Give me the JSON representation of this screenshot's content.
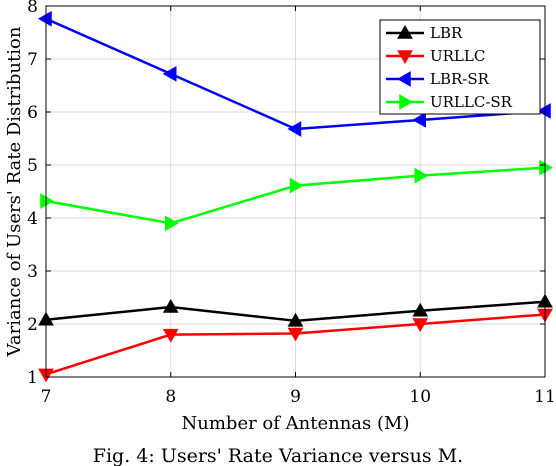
{
  "chart_data": {
    "type": "line",
    "xlabel": "Number of Antennas (M)",
    "ylabel": "Variance of Users' Rate Distribution",
    "x": [
      7,
      8,
      9,
      10,
      11
    ],
    "xlim": [
      7,
      11
    ],
    "ylim": [
      1,
      8
    ],
    "xticks": [
      "7",
      "8",
      "9",
      "10",
      "11"
    ],
    "yticks": [
      "1",
      "2",
      "3",
      "4",
      "5",
      "6",
      "7",
      "8"
    ],
    "grid": true,
    "legend_position": "top-right",
    "series": [
      {
        "name": "LBR",
        "values": [
          2.08,
          2.32,
          2.06,
          2.25,
          2.42
        ],
        "color": "#000000",
        "marker": "triangle-up"
      },
      {
        "name": "URLLC",
        "values": [
          1.05,
          1.8,
          1.82,
          2.0,
          2.18
        ],
        "color": "#ff0000",
        "marker": "triangle-down"
      },
      {
        "name": "LBR-SR",
        "values": [
          7.76,
          6.72,
          5.68,
          5.85,
          6.02
        ],
        "color": "#0000ff",
        "marker": "triangle-left"
      },
      {
        "name": "URLLC-SR",
        "values": [
          4.32,
          3.9,
          4.61,
          4.8,
          4.95
        ],
        "color": "#00ff00",
        "marker": "triangle-right"
      }
    ]
  },
  "caption": "Fig. 4: Users' Rate Variance versus M."
}
